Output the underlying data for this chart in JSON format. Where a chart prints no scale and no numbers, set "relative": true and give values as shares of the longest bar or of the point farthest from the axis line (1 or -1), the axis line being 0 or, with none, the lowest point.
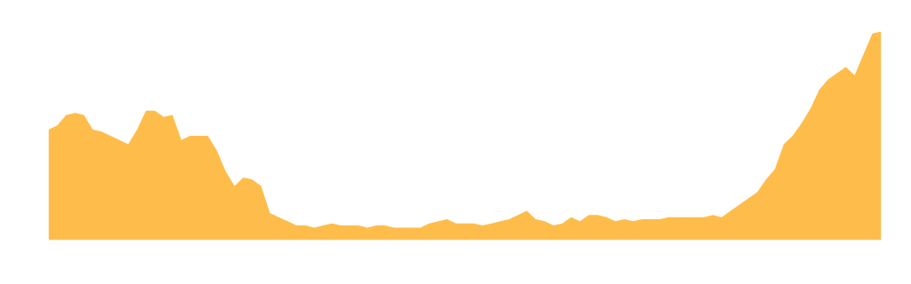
{
  "chart_data": {
    "type": "area",
    "relative": true,
    "categories": [
      null,
      null,
      null,
      null,
      null,
      null,
      null,
      null,
      null,
      null,
      null,
      null,
      null,
      null,
      null,
      null,
      null,
      null,
      null,
      null,
      null,
      null,
      null,
      null,
      null,
      null,
      null,
      null,
      null,
      null,
      null,
      null,
      null,
      null,
      null,
      null,
      null,
      null,
      null,
      null,
      null,
      null,
      null,
      null,
      null,
      null,
      null,
      null,
      null,
      null,
      null,
      null,
      null,
      null,
      null,
      null,
      null,
      null,
      null,
      null,
      null,
      null,
      null,
      null,
      null,
      null,
      null,
      null,
      null,
      null,
      null,
      null,
      null,
      null,
      null,
      null,
      null,
      null,
      null,
      null,
      null,
      null,
      null,
      null,
      null,
      null,
      null,
      null,
      null,
      null,
      null,
      null,
      null,
      null,
      null
    ],
    "series": [
      {
        "color": "#febd4b",
        "values": [
          0.53,
          0.55,
          0.6,
          0.61,
          0.6,
          0.53,
          0.52,
          0.5,
          0.48,
          0.46,
          0.53,
          0.62,
          0.62,
          0.59,
          0.6,
          0.48,
          0.5,
          0.5,
          0.5,
          0.43,
          0.33,
          0.26,
          0.3,
          0.29,
          0.26,
          0.13,
          0.11,
          0.09,
          0.07,
          0.07,
          0.06,
          0.07,
          0.08,
          0.07,
          0.07,
          0.07,
          0.06,
          0.07,
          0.07,
          0.06,
          0.06,
          0.06,
          0.06,
          0.08,
          0.09,
          0.1,
          0.08,
          0.08,
          0.08,
          0.07,
          0.08,
          0.09,
          0.1,
          0.12,
          0.14,
          0.1,
          0.09,
          0.07,
          0.08,
          0.11,
          0.09,
          0.12,
          0.12,
          0.11,
          0.09,
          0.1,
          0.09,
          0.1,
          0.1,
          0.1,
          0.11,
          0.11,
          0.11,
          0.11,
          0.11,
          0.12,
          0.11,
          0.14,
          0.17,
          0.2,
          0.23,
          0.29,
          0.34,
          0.46,
          0.5,
          0.56,
          0.63,
          0.72,
          0.77,
          0.8,
          0.83,
          0.79,
          0.89,
          0.99,
          1.0
        ]
      }
    ]
  }
}
